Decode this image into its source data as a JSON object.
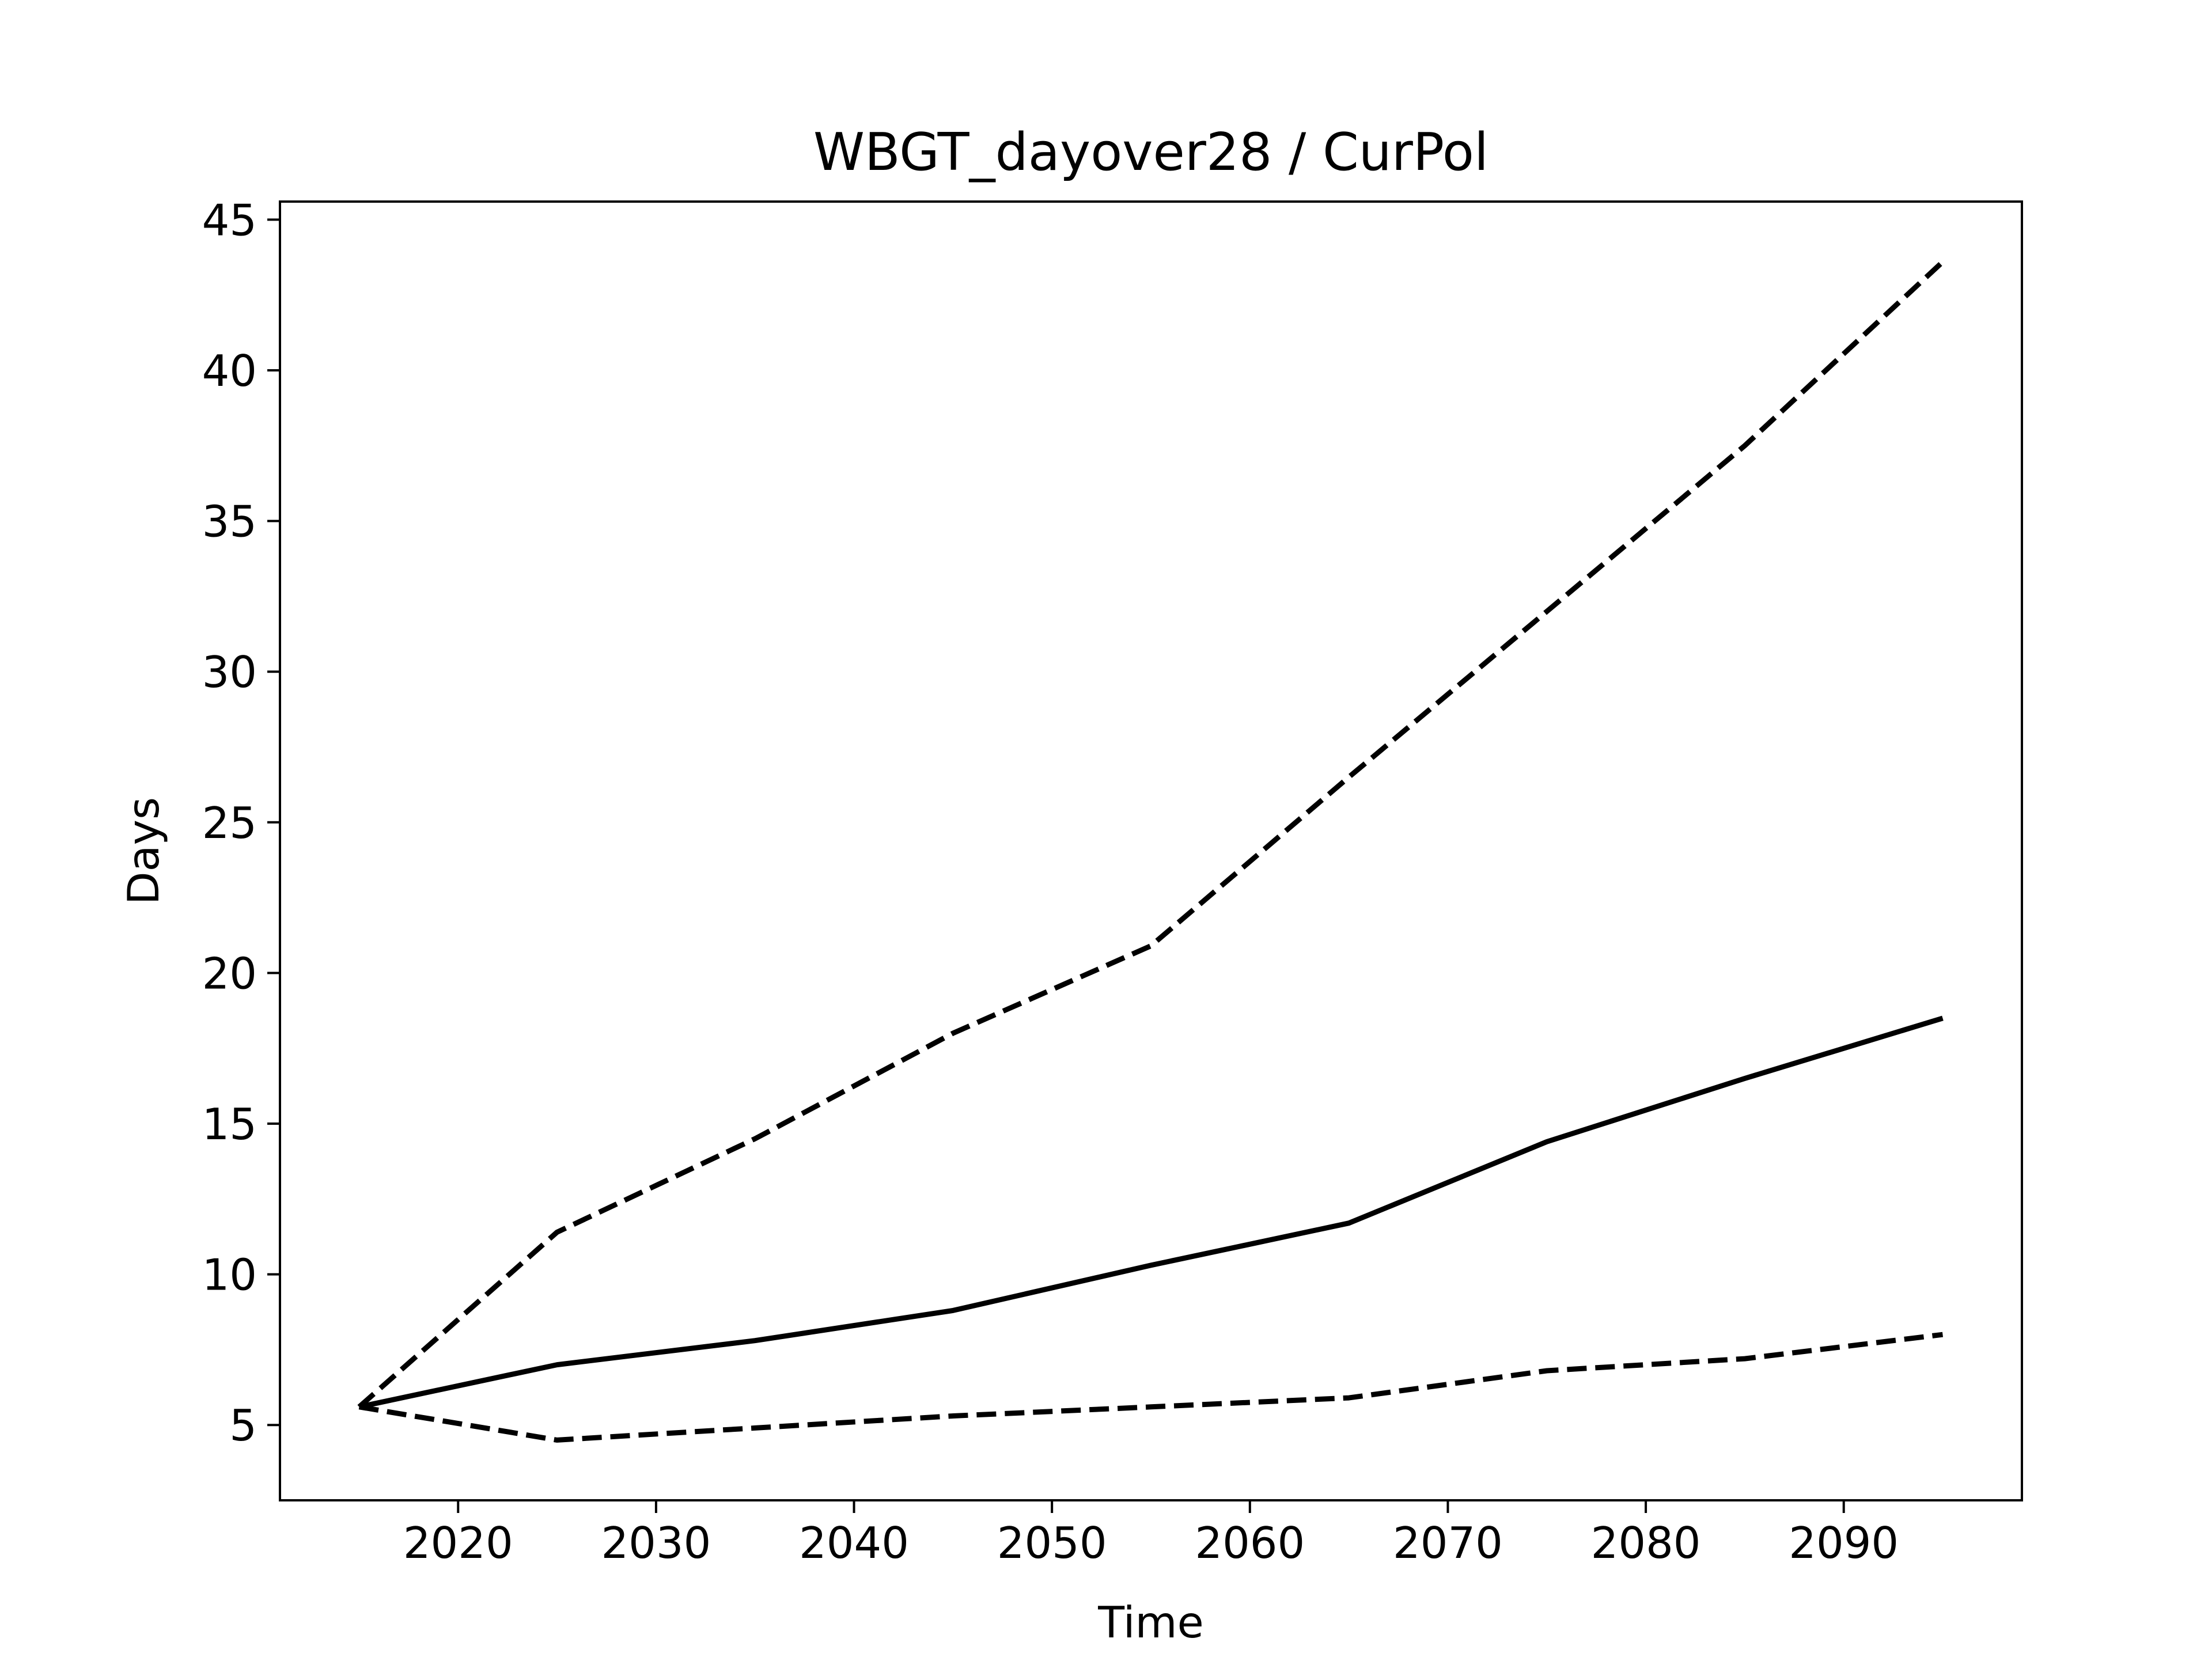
{
  "chart_data": {
    "type": "line",
    "title": "WBGT_dayover28 / CurPol",
    "xlabel": "Time",
    "ylabel": "Days",
    "xlim": [
      2011,
      2099
    ],
    "ylim": [
      2.5,
      45.6
    ],
    "xticks": [
      2020,
      2030,
      2040,
      2050,
      2060,
      2070,
      2080,
      2090
    ],
    "yticks": [
      5,
      10,
      15,
      20,
      25,
      30,
      35,
      40,
      45
    ],
    "grid": false,
    "legend": "none",
    "x": [
      2015,
      2025,
      2035,
      2045,
      2055,
      2065,
      2075,
      2085,
      2095
    ],
    "series": [
      {
        "style": "solid",
        "color": "#000000",
        "values": [
          5.6,
          7.0,
          7.8,
          8.8,
          10.3,
          11.7,
          14.4,
          16.5,
          18.5
        ]
      },
      {
        "style": "dashed",
        "color": "#000000",
        "values": [
          5.6,
          11.4,
          14.5,
          18.0,
          20.9,
          26.5,
          32.0,
          37.5,
          43.6
        ]
      },
      {
        "style": "dashed",
        "color": "#000000",
        "values": [
          5.6,
          4.5,
          4.9,
          5.3,
          5.6,
          5.9,
          6.8,
          7.2,
          8.0
        ]
      }
    ]
  }
}
